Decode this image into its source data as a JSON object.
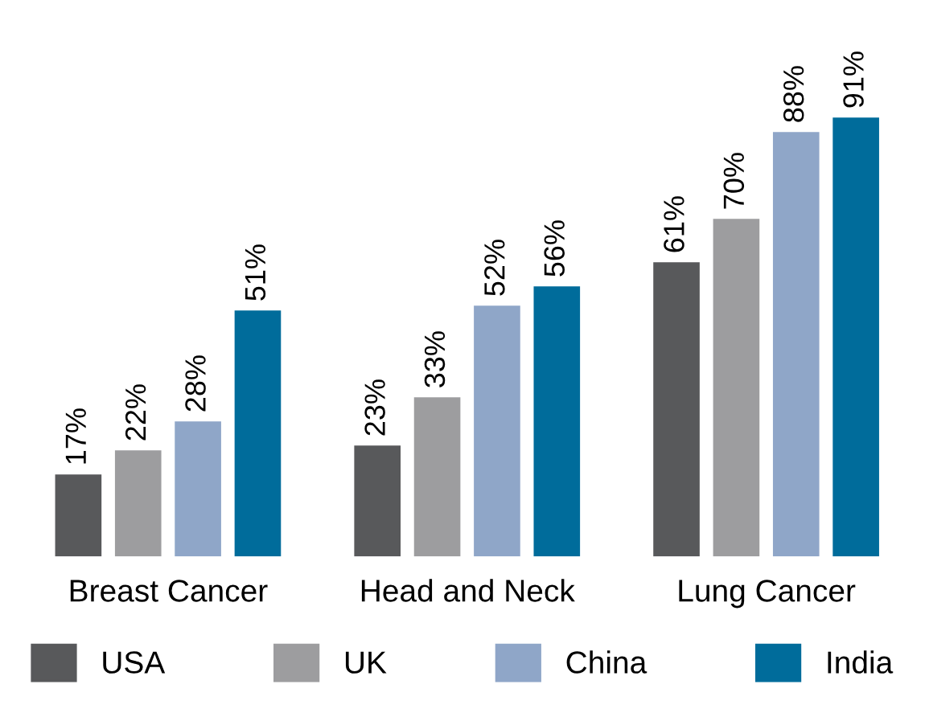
{
  "chart_data": {
    "type": "bar",
    "categories": [
      "Breast Cancer",
      "Head and Neck",
      "Lung Cancer"
    ],
    "series": [
      {
        "name": "USA",
        "color": "#58595b",
        "values": [
          17,
          23,
          61
        ],
        "value_labels": [
          "17%",
          "23%",
          "61%"
        ]
      },
      {
        "name": "UK",
        "color": "#9d9d9f",
        "values": [
          22,
          33,
          70
        ],
        "value_labels": [
          "22%",
          "33%",
          "70%"
        ]
      },
      {
        "name": "China",
        "color": "#8fa6c8",
        "values": [
          28,
          52,
          88
        ],
        "value_labels": [
          "28%",
          "52%",
          "88%"
        ]
      },
      {
        "name": "India",
        "color": "#006c9b",
        "values": [
          51,
          56,
          91
        ],
        "value_labels": [
          "51%",
          "56%",
          "91%"
        ]
      }
    ],
    "legend": "bottom",
    "grid": false
  }
}
